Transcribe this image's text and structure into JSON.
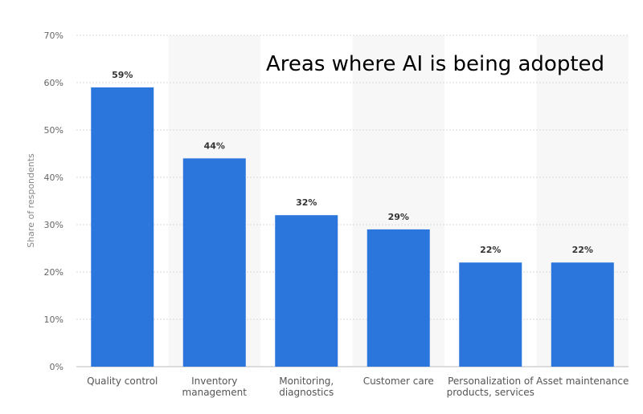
{
  "chart_data": {
    "type": "bar",
    "title": "Areas where AI is being adopted",
    "ylabel": "Share of respondents",
    "xlabel": "",
    "ylim": [
      0,
      70
    ],
    "yticks": [
      0,
      10,
      20,
      30,
      40,
      50,
      60,
      70
    ],
    "ytick_labels": [
      "0%",
      "10%",
      "20%",
      "30%",
      "40%",
      "50%",
      "60%",
      "70%"
    ],
    "categories": [
      [
        "Quality control"
      ],
      [
        "Inventory",
        "management"
      ],
      [
        "Monitoring,",
        "diagnostics"
      ],
      [
        "Customer care"
      ],
      [
        "Personalization of",
        "products, services"
      ],
      [
        "Asset maintenance"
      ]
    ],
    "values": [
      59,
      44,
      32,
      29,
      22,
      22
    ],
    "value_labels": [
      "59%",
      "44%",
      "32%",
      "29%",
      "22%",
      "22%"
    ],
    "bar_color": "#2b76dc",
    "grid": true,
    "legend": "none"
  }
}
